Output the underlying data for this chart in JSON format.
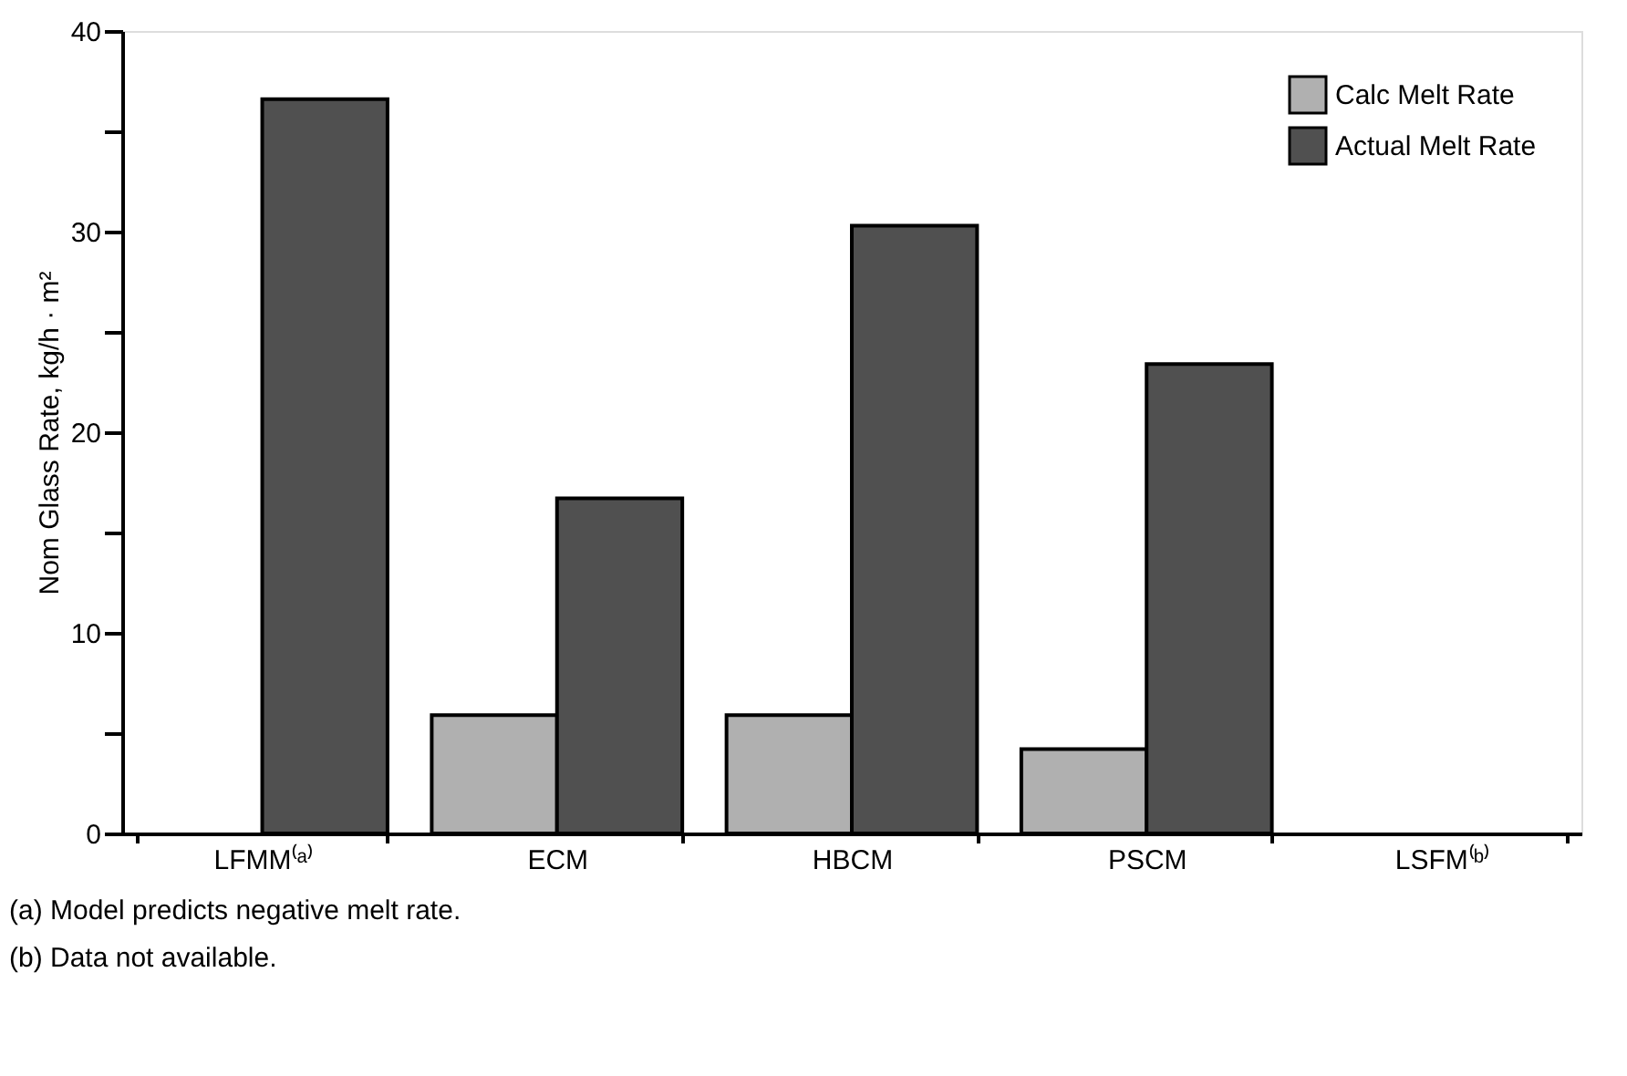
{
  "chart_data": {
    "type": "bar",
    "ylabel": "Nom Glass Rate, kg/h · m²",
    "categories": [
      "LFMM⁽ᵃ⁾",
      "ECM",
      "HBCM",
      "PSCM",
      "LSFM⁽ᵇ⁾"
    ],
    "series": [
      {
        "name": "Calc Melt Rate",
        "color": "#b0b0b0",
        "values": [
          null,
          5.9,
          5.9,
          4.2,
          null
        ]
      },
      {
        "name": "Actual Melt Rate",
        "color": "#505050",
        "values": [
          36.6,
          16.7,
          30.3,
          23.4,
          null
        ]
      }
    ],
    "ylim": [
      0,
      40
    ],
    "yticks": [
      0,
      {
        "value": 5,
        "label": null
      },
      10,
      {
        "value": 15,
        "label": null
      },
      20,
      {
        "value": 25,
        "label": null
      },
      30,
      {
        "value": 35,
        "label": null
      },
      40
    ],
    "grid": false,
    "legend": "top right",
    "annotations": [
      "(a) Model predicts negative melt rate.",
      "(b) Data not available."
    ]
  }
}
